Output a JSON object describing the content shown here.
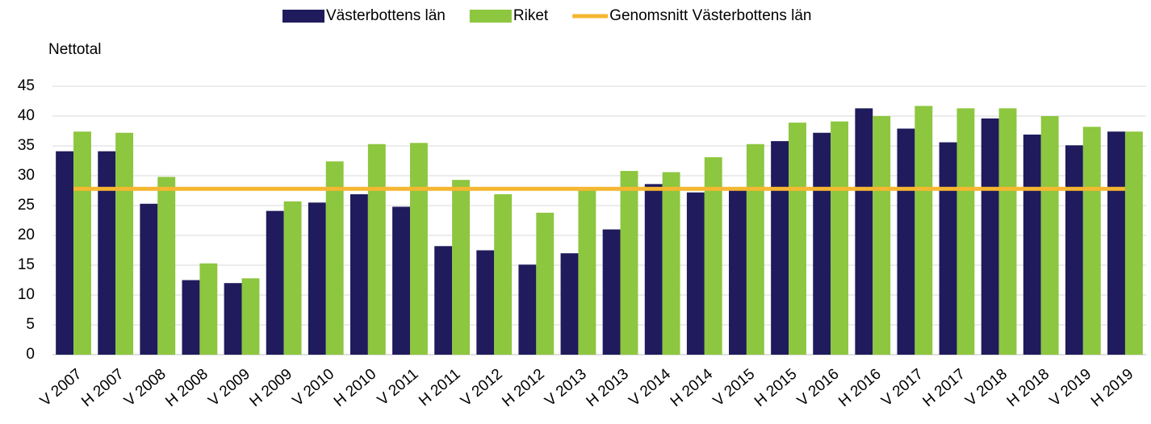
{
  "chart_data": {
    "type": "bar",
    "y_label": "Nettotal",
    "categories": [
      "V 2007",
      "H 2007",
      "V 2008",
      "H 2008",
      "V 2009",
      "H 2009",
      "V 2010",
      "H 2010",
      "V 2011",
      "H 2011",
      "V 2012",
      "H 2012",
      "V 2013",
      "H 2013",
      "V 2014",
      "H 2014",
      "V 2015",
      "H 2015",
      "V 2016",
      "H 2016",
      "V 2017",
      "H 2017",
      "V 2018",
      "H 2018",
      "V 2019",
      "H 2019"
    ],
    "series": [
      {
        "name": "Västerbottens län",
        "color": "#1f1b5c",
        "values": [
          34.1,
          34.1,
          25.3,
          12.5,
          12,
          24.1,
          25.5,
          26.9,
          24.8,
          18.2,
          17.5,
          15.1,
          17,
          21,
          28.6,
          27.2,
          28,
          35.8,
          37.2,
          41.3,
          37.9,
          35.6,
          39.6,
          36.9,
          35.1,
          37.4
        ]
      },
      {
        "name": "Riket",
        "color": "#8dc63f",
        "values": [
          37.4,
          37.2,
          29.8,
          15.3,
          12.8,
          25.7,
          32.4,
          35.3,
          35.5,
          29.3,
          26.9,
          23.8,
          27.8,
          30.8,
          30.6,
          33.1,
          35.3,
          38.9,
          39.1,
          40,
          41.7,
          41.3,
          41.3,
          40,
          38.2,
          37.4
        ]
      },
      {
        "name": "Genomsnitt Västerbottens län",
        "type": "line",
        "color": "#f5b731",
        "values": [
          27.8,
          27.8,
          27.8,
          27.8,
          27.8,
          27.8,
          27.8,
          27.8,
          27.8,
          27.8,
          27.8,
          27.8,
          27.8,
          27.8,
          27.8,
          27.8,
          27.8,
          27.8,
          27.8,
          27.8,
          27.8,
          27.8,
          27.8,
          27.8,
          27.8,
          27.8
        ]
      }
    ],
    "ylim": [
      0,
      45
    ],
    "yticks": [
      0,
      5,
      10,
      15,
      20,
      25,
      30,
      35,
      40,
      45
    ],
    "grid": true,
    "legend": "top"
  }
}
